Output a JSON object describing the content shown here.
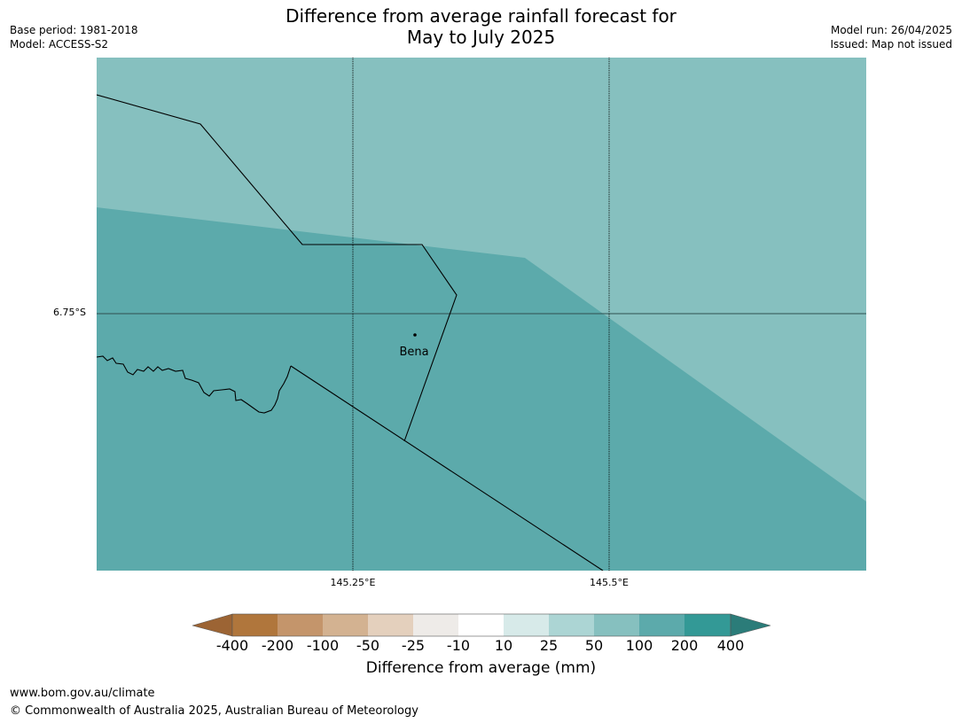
{
  "header": {
    "title_line1": "Difference from average rainfall forecast for",
    "title_line2": "May to July 2025",
    "base_period": "Base period: 1981-2018",
    "model": "Model: ACCESS-S2",
    "model_run": "Model run: 26/04/2025",
    "issued": "Issued: Map not issued"
  },
  "map": {
    "latitude_label": "6.75°S",
    "longitude_labels": [
      "145.25°E",
      "145.5°E"
    ],
    "place_label": "Bena",
    "region_colors": {
      "upper": "#86c0bf",
      "lower": "#5caaab"
    }
  },
  "colorbar": {
    "title": "Difference from average (mm)",
    "ticks": [
      "-400",
      "-200",
      "-100",
      "-50",
      "-25",
      "-10",
      "10",
      "25",
      "50",
      "100",
      "200",
      "400"
    ],
    "colors": [
      "#9c6434",
      "#b0763c",
      "#c4956b",
      "#d3b291",
      "#e4d0bd",
      "#eeebe8",
      "#ffffff",
      "#d7eae9",
      "#acd5d4",
      "#86c0bf",
      "#5caaab",
      "#339996",
      "#2b7c79"
    ]
  },
  "footer": {
    "url": "www.bom.gov.au/climate",
    "copyright": "© Commonwealth of Australia 2025, Australian Bureau of Meteorology"
  }
}
